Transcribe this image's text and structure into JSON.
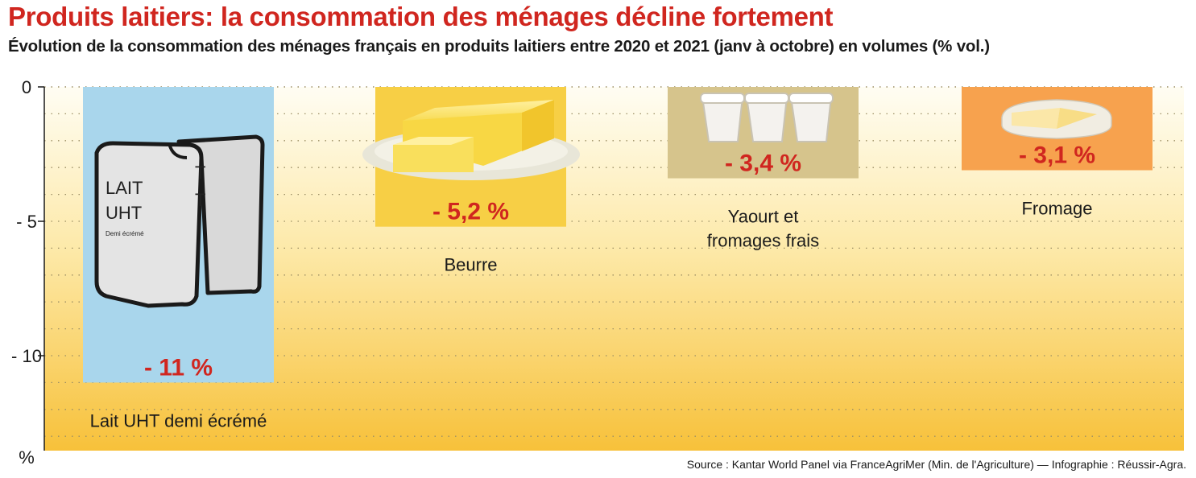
{
  "title": "Produits laitiers: la consommation des ménages décline fortement",
  "subtitle": "Évolution de la  consommation des ménages français en produits laitiers entre 2020 et 2021 (janv à octobre) en volumes (% vol.)",
  "source": "Source : Kantar World Panel via FranceAgriMer (Min. de l'Agriculture) — Infographie : Réussir-Agra.",
  "chart_data": {
    "type": "bar",
    "categories": [
      "Lait UHT demi écrémé",
      "Beurre",
      "Yaourt et fromages frais",
      "Fromage"
    ],
    "category_lines": [
      [
        "Lait UHT demi écrémé"
      ],
      [
        "Beurre"
      ],
      [
        "Yaourt et",
        "fromages frais"
      ],
      [
        "Fromage"
      ]
    ],
    "values": [
      -11,
      -5.2,
      -3.4,
      -3.1
    ],
    "value_labels": [
      "- 11 %",
      "- 5,2 %",
      "- 3,4 %",
      "- 3,1 %"
    ],
    "bar_colors": [
      "#a9d6ec",
      "#f7cf45",
      "#d6c48c",
      "#f7a24e"
    ],
    "ylabel": "%",
    "yticks": [
      0,
      -5,
      -10
    ],
    "ytick_labels": [
      "0",
      "- 5",
      "- 10"
    ],
    "ylim": [
      -13.5,
      0
    ],
    "grid": true,
    "legend": "none",
    "product_text": {
      "carton_line1": "LAIT",
      "carton_line2": "UHT",
      "carton_line3": "Demi écrémé"
    }
  }
}
